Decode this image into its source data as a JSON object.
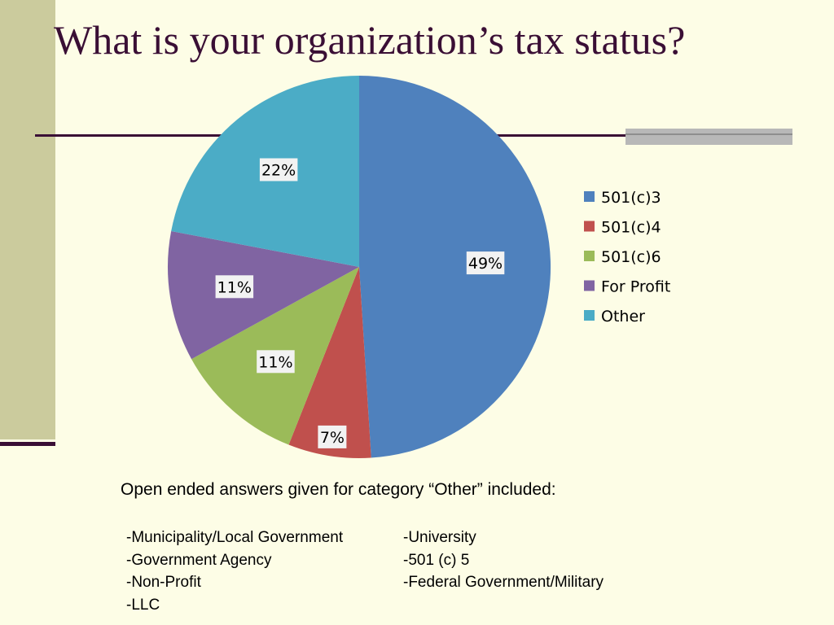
{
  "slide": {
    "title": "What is your organization’s tax status?",
    "colors": {
      "background": "#fdfde6",
      "side_bar": "#cbcb9d",
      "accent": "#3a0f35"
    }
  },
  "chart_data": {
    "type": "pie",
    "legend_position": "right",
    "categories": [
      "501(c)3",
      "501(c)4",
      "501(c)6",
      "For Profit",
      "Other"
    ],
    "values": [
      49,
      7,
      11,
      11,
      22
    ],
    "labels": [
      "49%",
      "7%",
      "11%",
      "11%",
      "22%"
    ],
    "colors": [
      "#4f81bd",
      "#c0504d",
      "#9bbb59",
      "#8064a2",
      "#4bacc6"
    ]
  },
  "notes": {
    "intro": "Open ended answers given for category “Other” included:",
    "left_items": [
      "-Municipality/Local Government",
      "-Government Agency",
      "-Non-Profit",
      "-LLC"
    ],
    "right_items": [
      "-University",
      "-501 (c) 5",
      "-Federal Government/Military"
    ]
  }
}
